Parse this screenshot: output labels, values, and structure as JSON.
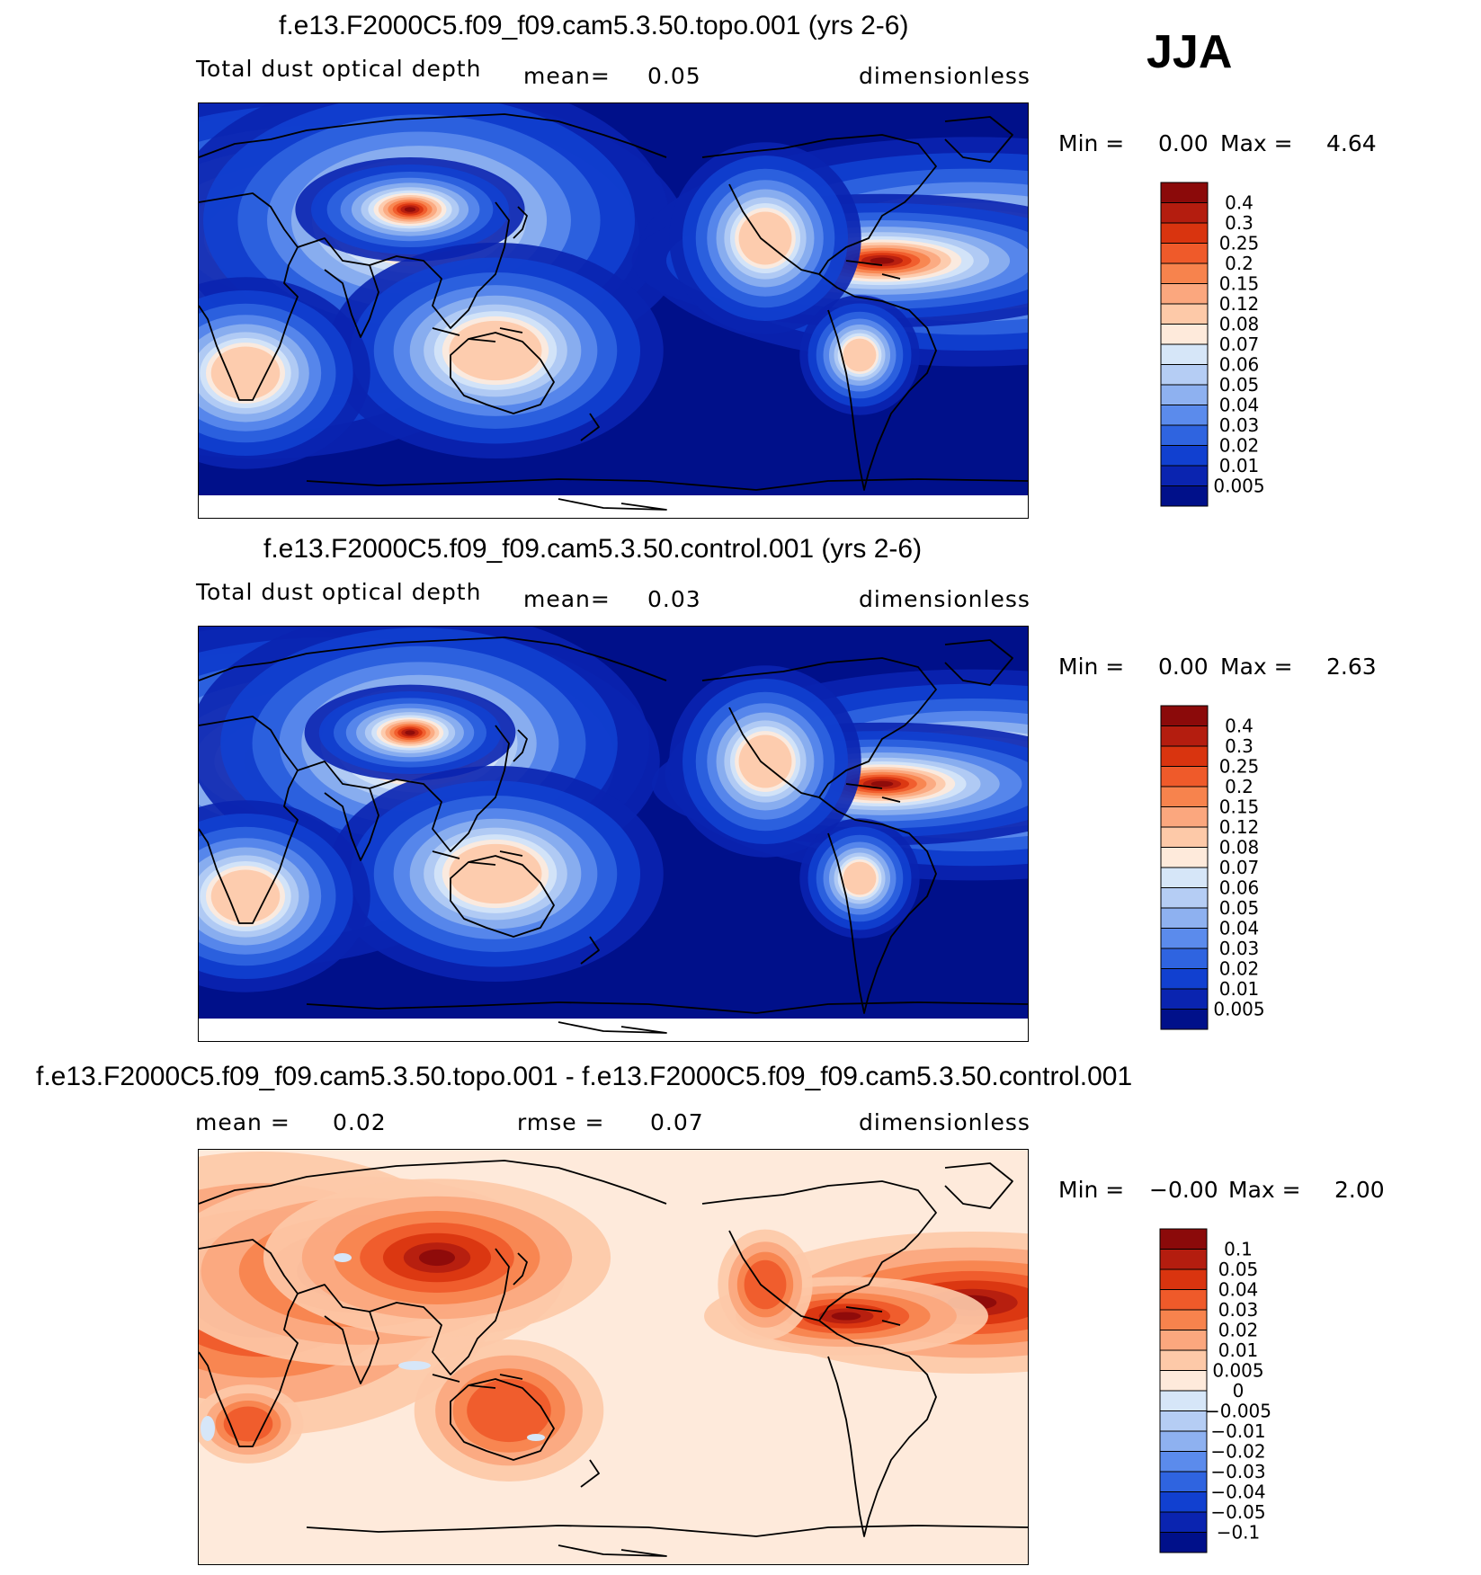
{
  "season": "JJA",
  "panels": [
    {
      "title": "f.e13.F2000C5.f09_f09.cam5.3.50.topo.001 (yrs 2-6)",
      "variable": "Total dust optical depth",
      "stat_label": "mean=",
      "stat_value": "0.05",
      "units": "dimensionless",
      "min_label": "Min =",
      "min_value": "0.00",
      "max_label": "Max =",
      "max_value": "4.64",
      "levels": [
        "0.4",
        "0.3",
        "0.25",
        "0.2",
        "0.15",
        "0.12",
        "0.08",
        "0.07",
        "0.06",
        "0.05",
        "0.04",
        "0.03",
        "0.02",
        "0.01",
        "0.005"
      ],
      "colors": [
        "#8b0a0a",
        "#b41d0f",
        "#d9340f",
        "#ef5a2a",
        "#f7834d",
        "#fba77e",
        "#fdc9a8",
        "#feeadb",
        "#d6e6f8",
        "#b5cdf4",
        "#8eb1f0",
        "#5b8bec",
        "#2f64e0",
        "#1140d0",
        "#0a24b0",
        "#00108a"
      ],
      "field": "abs"
    },
    {
      "title": "f.e13.F2000C5.f09_f09.cam5.3.50.control.001 (yrs 2-6)",
      "variable": "Total dust optical depth",
      "stat_label": "mean=",
      "stat_value": "0.03",
      "units": "dimensionless",
      "min_label": "Min =",
      "min_value": "0.00",
      "max_label": "Max =",
      "max_value": "2.63",
      "levels": [
        "0.4",
        "0.3",
        "0.25",
        "0.2",
        "0.15",
        "0.12",
        "0.08",
        "0.07",
        "0.06",
        "0.05",
        "0.04",
        "0.03",
        "0.02",
        "0.01",
        "0.005"
      ],
      "colors": [
        "#8b0a0a",
        "#b41d0f",
        "#d9340f",
        "#ef5a2a",
        "#f7834d",
        "#fba77e",
        "#fdc9a8",
        "#feeadb",
        "#d6e6f8",
        "#b5cdf4",
        "#8eb1f0",
        "#5b8bec",
        "#2f64e0",
        "#1140d0",
        "#0a24b0",
        "#00108a"
      ],
      "field": "abs"
    },
    {
      "title": "f.e13.F2000C5.f09_f09.cam5.3.50.topo.001 - f.e13.F2000C5.f09_f09.cam5.3.50.control.001",
      "variable": "",
      "stat_label": "mean =",
      "stat_value": "0.02",
      "stat2_label": "rmse =",
      "stat2_value": "0.07",
      "units": "dimensionless",
      "min_label": "Min =",
      "min_value": "−0.00",
      "max_label": "Max =",
      "max_value": "2.00",
      "levels": [
        "0.1",
        "0.05",
        "0.04",
        "0.03",
        "0.02",
        "0.01",
        "0.005",
        "0",
        "−0.005",
        "−0.01",
        "−0.02",
        "−0.03",
        "−0.04",
        "−0.05",
        "−0.1"
      ],
      "colors": [
        "#8b0a0a",
        "#b41d0f",
        "#d9340f",
        "#ef5a2a",
        "#f7834d",
        "#fba77e",
        "#fdc9a8",
        "#feeadb",
        "#d6e6f8",
        "#b5cdf4",
        "#8eb1f0",
        "#5b8bec",
        "#2f64e0",
        "#1140d0",
        "#0a24b0",
        "#00108a"
      ],
      "field": "diff"
    }
  ]
}
